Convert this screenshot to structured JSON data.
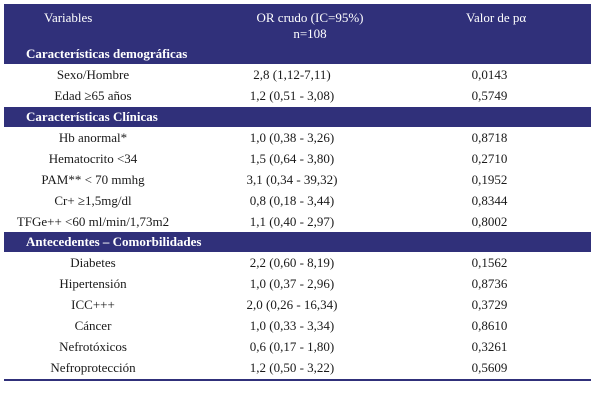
{
  "header": {
    "col_variables": "Variables",
    "col_or_line1": "OR crudo (IC=95%)",
    "col_or_line2": "n=108",
    "col_p": "Valor de pα"
  },
  "sections": [
    {
      "title": "Características demográficas",
      "rows": [
        {
          "variable": "Sexo/Hombre",
          "or": "2,8 (1,12-7,11)",
          "p": "0,0143"
        },
        {
          "variable": "Edad ≥65 años",
          "or": "1,2 (0,51 - 3,08)",
          "p": "0,5749"
        }
      ]
    },
    {
      "title": "Características Clínicas",
      "rows": [
        {
          "variable": "Hb anormal*",
          "or": "1,0 (0,38 - 3,26)",
          "p": "0,8718"
        },
        {
          "variable": "Hematocrito <34",
          "or": "1,5 (0,64 - 3,80)",
          "p": "0,2710"
        },
        {
          "variable": "PAM** < 70 mmhg",
          "or": "3,1 (0,34 - 39,32)",
          "p": "0,1952"
        },
        {
          "variable": "Cr+ ≥1,5mg/dl",
          "or": "0,8 (0,18 - 3,44)",
          "p": "0,8344"
        },
        {
          "variable": "TFGe++ <60 ml/min/1,73m2",
          "or": "1,1 (0,40 - 2,97)",
          "p": "0,8002"
        }
      ]
    },
    {
      "title": "Antecedentes – Comorbilidades",
      "rows": [
        {
          "variable": "Diabetes",
          "or": "2,2 (0,60 - 8,19)",
          "p": "0,1562"
        },
        {
          "variable": "Hipertensión",
          "or": "1,0 (0,37 - 2,96)",
          "p": "0,8736"
        },
        {
          "variable": "ICC+++",
          "or": "2,0 (0,26 - 16,34)",
          "p": "0,3729"
        },
        {
          "variable": "Cáncer",
          "or": "1,0 (0,33 - 3,34)",
          "p": "0,8610"
        },
        {
          "variable": "Nefrotóxicos",
          "or": "0,6 (0,17 - 1,80)",
          "p": "0,3261"
        },
        {
          "variable": "Nefroprotección",
          "or": "1,2 (0,50 - 3,22)",
          "p": "0,5609"
        }
      ]
    }
  ]
}
